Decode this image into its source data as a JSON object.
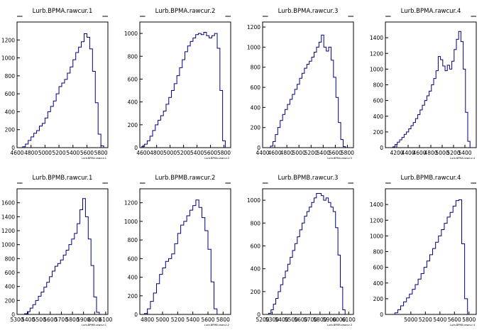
{
  "chart_data": [
    {
      "type": "histogram",
      "title": "Lurb.BPMA.rawcur.1",
      "xlabel": "Lurb.BPMA.rawcur.1",
      "xlim": [
        4600,
        5900
      ],
      "ylim": [
        0,
        1400
      ],
      "xticks": [
        4600,
        4800,
        5000,
        5200,
        5400,
        5600,
        5800
      ],
      "yticks": [
        0,
        200,
        400,
        600,
        800,
        1000,
        1200
      ],
      "x": [
        4700,
        4740,
        4780,
        4820,
        4860,
        4900,
        4940,
        4980,
        5020,
        5060,
        5100,
        5140,
        5180,
        5220,
        5260,
        5300,
        5340,
        5380,
        5420,
        5460,
        5500,
        5540,
        5580,
        5620,
        5660,
        5700,
        5740,
        5780,
        5820
      ],
      "values": [
        10,
        40,
        80,
        120,
        160,
        190,
        240,
        270,
        330,
        400,
        460,
        520,
        600,
        680,
        720,
        760,
        830,
        900,
        980,
        1060,
        1120,
        1180,
        1270,
        1230,
        1100,
        850,
        500,
        150,
        20
      ]
    },
    {
      "type": "histogram",
      "title": "Lurb.BPMA.rawcur.2",
      "xlabel": "Lurb.BPMA.rawcur.2",
      "xlim": [
        4550,
        5900
      ],
      "ylim": [
        0,
        1100
      ],
      "xticks": [
        4600,
        4800,
        5000,
        5200,
        5400,
        5600,
        5800
      ],
      "yticks": [
        0,
        200,
        400,
        600,
        800,
        1000
      ],
      "x": [
        4600,
        4640,
        4680,
        4720,
        4760,
        4800,
        4840,
        4880,
        4920,
        4960,
        5000,
        5040,
        5080,
        5120,
        5160,
        5200,
        5240,
        5280,
        5320,
        5360,
        5400,
        5440,
        5480,
        5520,
        5560,
        5600,
        5640,
        5680,
        5720,
        5760,
        5800
      ],
      "values": [
        10,
        30,
        60,
        100,
        150,
        200,
        240,
        280,
        320,
        380,
        440,
        500,
        560,
        630,
        700,
        770,
        840,
        890,
        930,
        960,
        990,
        1000,
        990,
        1010,
        980,
        960,
        980,
        1000,
        870,
        500,
        60
      ]
    },
    {
      "type": "histogram",
      "title": "Lurb.BPMA.rawcur.3",
      "xlabel": "Lurb.BPMA.rawcur.3",
      "xlim": [
        4400,
        5900
      ],
      "ylim": [
        0,
        1250
      ],
      "xticks": [
        4400,
        4600,
        4800,
        5000,
        5200,
        5400,
        5600,
        5800
      ],
      "yticks": [
        0,
        200,
        400,
        600,
        800,
        1000,
        1200
      ],
      "x": [
        4550,
        4590,
        4630,
        4670,
        4710,
        4750,
        4790,
        4830,
        4870,
        4910,
        4950,
        4990,
        5030,
        5070,
        5110,
        5150,
        5190,
        5230,
        5270,
        5310,
        5350,
        5390,
        5430,
        5470,
        5510,
        5550,
        5590,
        5630,
        5670,
        5710,
        5750
      ],
      "values": [
        15,
        60,
        130,
        200,
        270,
        330,
        380,
        430,
        480,
        530,
        580,
        630,
        690,
        740,
        790,
        830,
        860,
        900,
        950,
        1000,
        1050,
        1120,
        1000,
        960,
        1000,
        870,
        700,
        500,
        250,
        80,
        10
      ]
    },
    {
      "type": "histogram",
      "title": "Lurb.BPMA.rawcur.4",
      "xlabel": "Lurb.BPMA.rawcur.4",
      "xlim": [
        4000,
        5600
      ],
      "ylim": [
        0,
        1600
      ],
      "xticks": [
        4200,
        4400,
        4600,
        4800,
        5000,
        5200,
        5400
      ],
      "yticks": [
        0,
        200,
        400,
        600,
        800,
        1000,
        1200,
        1400
      ],
      "x": [
        4150,
        4190,
        4230,
        4270,
        4310,
        4350,
        4390,
        4430,
        4470,
        4510,
        4550,
        4590,
        4630,
        4670,
        4710,
        4750,
        4790,
        4830,
        4870,
        4910,
        4950,
        4990,
        5030,
        5070,
        5110,
        5150,
        5190,
        5230,
        5270,
        5310,
        5350,
        5390,
        5430,
        5470
      ],
      "values": [
        10,
        40,
        70,
        100,
        130,
        170,
        200,
        240,
        280,
        320,
        370,
        420,
        480,
        540,
        600,
        660,
        720,
        800,
        880,
        980,
        1160,
        1120,
        1040,
        980,
        1050,
        1000,
        1100,
        1250,
        1380,
        1480,
        1350,
        1000,
        450,
        80
      ]
    },
    {
      "type": "histogram",
      "title": "Lurb.BPMB.rawcur.1",
      "xlabel": "Lurb.BPMB.rawcur.1",
      "xlim": [
        5300,
        6120
      ],
      "ylim": [
        0,
        1800
      ],
      "xticks": [
        5300,
        5400,
        5500,
        5600,
        5700,
        5800,
        5900,
        6000,
        6100
      ],
      "yticks": [
        0,
        200,
        400,
        600,
        800,
        1000,
        1200,
        1400,
        1600
      ],
      "x": [
        5380,
        5405,
        5430,
        5455,
        5480,
        5505,
        5530,
        5555,
        5580,
        5605,
        5630,
        5655,
        5680,
        5705,
        5730,
        5755,
        5780,
        5805,
        5830,
        5855,
        5880,
        5905,
        5930,
        5955,
        5980,
        6005,
        6030
      ],
      "values": [
        10,
        40,
        90,
        140,
        200,
        260,
        320,
        390,
        460,
        540,
        620,
        690,
        730,
        780,
        850,
        920,
        1000,
        1080,
        1160,
        1300,
        1500,
        1660,
        1400,
        1080,
        700,
        250,
        30
      ]
    },
    {
      "type": "histogram",
      "title": "Lurb.BPMB.rawcur.2",
      "xlabel": "Lurb.BPMB.rawcur.2",
      "xlim": [
        4700,
        5900
      ],
      "ylim": [
        0,
        1350
      ],
      "xticks": [
        4800,
        5000,
        5200,
        5400,
        5600,
        5800
      ],
      "yticks": [
        0,
        200,
        400,
        600,
        800,
        1000,
        1200
      ],
      "x": [
        4780,
        4820,
        4860,
        4900,
        4940,
        4980,
        5020,
        5060,
        5100,
        5140,
        5180,
        5220,
        5260,
        5300,
        5340,
        5380,
        5420,
        5460,
        5500,
        5540,
        5580,
        5620,
        5660,
        5700
      ],
      "values": [
        10,
        60,
        140,
        230,
        330,
        430,
        500,
        570,
        600,
        650,
        760,
        870,
        960,
        1000,
        1060,
        1120,
        1170,
        1230,
        1150,
        1040,
        900,
        700,
        350,
        60
      ]
    },
    {
      "type": "histogram",
      "title": "Lurb.BPMB.rawcur.3",
      "xlabel": "Lurb.BPMB.rawcur.3",
      "xlim": [
        5200,
        6150
      ],
      "ylim": [
        0,
        1100
      ],
      "xticks": [
        5200,
        5300,
        5400,
        5500,
        5600,
        5700,
        5800,
        5900,
        6000,
        6100
      ],
      "yticks": [
        0,
        200,
        400,
        600,
        800,
        1000
      ],
      "x": [
        5275,
        5300,
        5325,
        5350,
        5375,
        5400,
        5425,
        5450,
        5475,
        5500,
        5525,
        5550,
        5575,
        5600,
        5625,
        5650,
        5675,
        5700,
        5725,
        5750,
        5775,
        5800,
        5825,
        5850,
        5875,
        5900,
        5925,
        5950,
        5975,
        6000,
        6025,
        6050
      ],
      "values": [
        10,
        40,
        90,
        140,
        200,
        260,
        320,
        380,
        440,
        500,
        560,
        620,
        680,
        740,
        800,
        860,
        900,
        940,
        980,
        1020,
        1060,
        1060,
        1040,
        1000,
        1020,
        980,
        940,
        900,
        760,
        520,
        240,
        40
      ]
    },
    {
      "type": "histogram",
      "title": "Lurb.BPMB.rawcur.4",
      "xlabel": "Lurb.BPMB.rawcur.4",
      "xlim": [
        4650,
        5900
      ],
      "ylim": [
        0,
        1600
      ],
      "xticks": [
        5000,
        5200,
        5400,
        5600,
        5800
      ],
      "yticks": [
        0,
        200,
        400,
        600,
        800,
        1000,
        1200,
        1400
      ],
      "x": [
        4800,
        4840,
        4880,
        4920,
        4960,
        5000,
        5040,
        5080,
        5120,
        5160,
        5200,
        5240,
        5280,
        5320,
        5360,
        5400,
        5440,
        5480,
        5520,
        5560,
        5600,
        5640,
        5680,
        5720,
        5760
      ],
      "values": [
        20,
        60,
        110,
        160,
        210,
        260,
        320,
        380,
        450,
        520,
        600,
        680,
        760,
        840,
        920,
        1000,
        1080,
        1160,
        1240,
        1300,
        1380,
        1450,
        1460,
        900,
        200
      ]
    }
  ]
}
